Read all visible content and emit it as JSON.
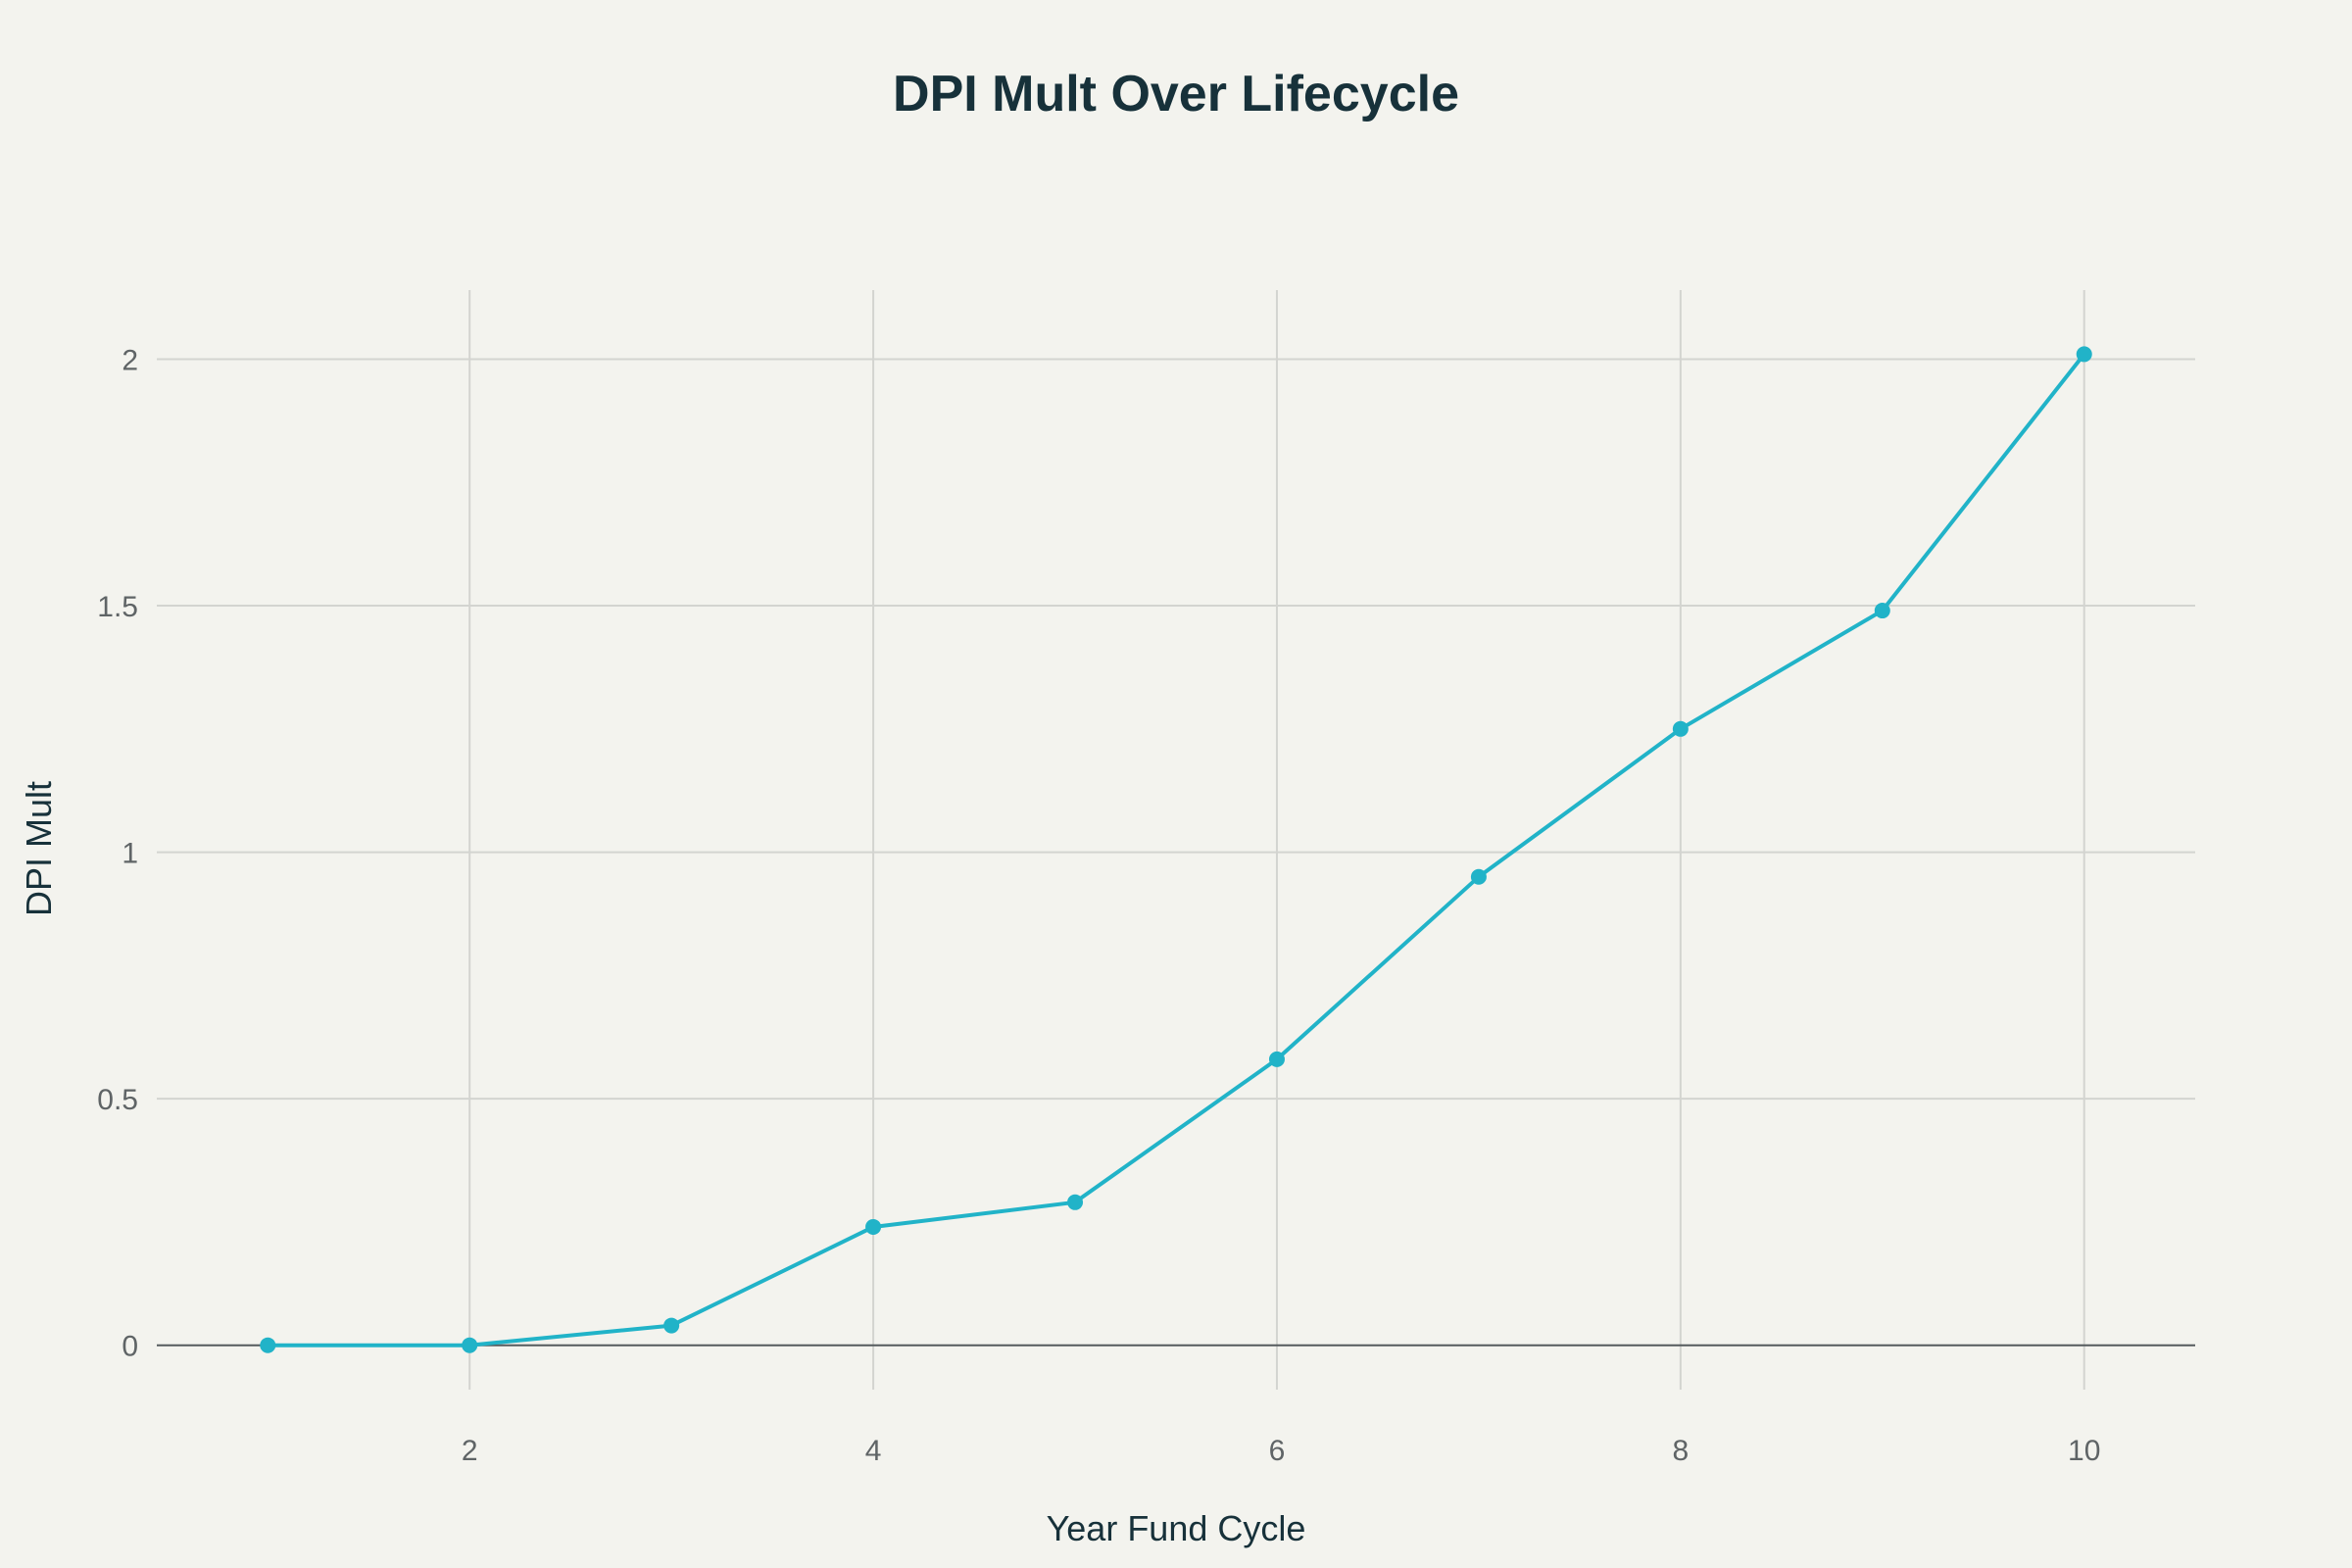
{
  "chart_data": {
    "type": "line",
    "title": "DPI Mult Over Lifecycle",
    "xlabel": "Year Fund Cycle",
    "ylabel": "DPI Mult",
    "x": [
      1,
      2,
      3,
      4,
      5,
      6,
      7,
      8,
      9,
      10
    ],
    "series": [
      {
        "values": [
          0,
          0,
          0.04,
          0.24,
          0.29,
          0.58,
          0.95,
          1.25,
          1.49,
          2.01
        ]
      }
    ],
    "xlim": [
      0.45,
      10.55
    ],
    "ylim": [
      -0.09,
      2.14
    ],
    "xticks": [
      2,
      4,
      6,
      8,
      10
    ],
    "xtick_labels": [
      "2",
      "4",
      "6",
      "8",
      "10"
    ],
    "yticks": [
      0,
      0.5,
      1,
      1.5,
      2
    ],
    "ytick_labels": [
      "0",
      "0.5",
      "1",
      "1.5",
      "2"
    ],
    "grid": true,
    "line_color": "#21b3c8",
    "background_color": "#f3f3ee"
  }
}
